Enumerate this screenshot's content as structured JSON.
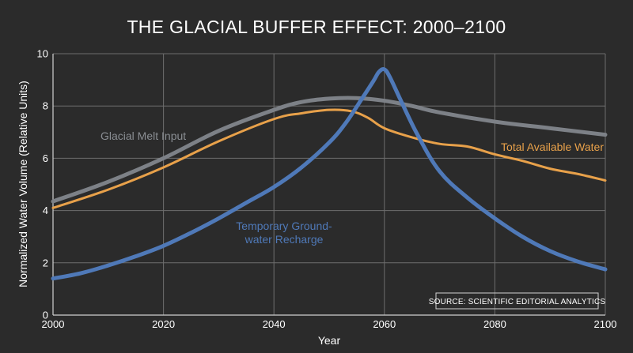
{
  "chart_data": {
    "type": "line",
    "title": "THE GLACIAL BUFFER EFFECT: 2000–2100",
    "xlabel": "Year",
    "ylabel": "Normalized Water Volume (Relative Units)",
    "xlim": [
      2000,
      2100
    ],
    "ylim": [
      0,
      10
    ],
    "x_ticks": [
      2000,
      2020,
      2040,
      2060,
      2080,
      2100
    ],
    "y_ticks": [
      0,
      2,
      4,
      6,
      8,
      10
    ],
    "grid": true,
    "source_note": "SOURCE: SCIENTIFIC EDITORIAL ANALYTICS",
    "series": [
      {
        "name": "Glacial Melt Input",
        "color": "#7d8187",
        "x": [
          2000,
          2010,
          2020,
          2030,
          2040,
          2045,
          2050,
          2055,
          2060,
          2065,
          2070,
          2080,
          2090,
          2100
        ],
        "values": [
          4.35,
          5.1,
          6.0,
          7.05,
          7.85,
          8.15,
          8.28,
          8.3,
          8.2,
          8.0,
          7.75,
          7.4,
          7.15,
          6.9
        ]
      },
      {
        "name": "Total Available Water",
        "color": "#e8a14a",
        "x": [
          2000,
          2010,
          2020,
          2030,
          2040,
          2045,
          2050,
          2054,
          2057,
          2060,
          2065,
          2070,
          2075,
          2080,
          2085,
          2090,
          2095,
          2100
        ],
        "values": [
          4.1,
          4.8,
          5.65,
          6.65,
          7.5,
          7.72,
          7.85,
          7.8,
          7.55,
          7.15,
          6.8,
          6.55,
          6.45,
          6.15,
          5.9,
          5.6,
          5.4,
          5.15
        ]
      },
      {
        "name": "Temporary Ground-water Recharge",
        "label_lines": [
          "Temporary Ground-",
          "water Recharge"
        ],
        "color": "#4f79b8",
        "x": [
          2000,
          2005,
          2010,
          2015,
          2020,
          2025,
          2030,
          2035,
          2040,
          2045,
          2050,
          2053,
          2056,
          2058,
          2059,
          2060,
          2061,
          2063,
          2066,
          2070,
          2075,
          2080,
          2085,
          2090,
          2095,
          2100
        ],
        "values": [
          1.4,
          1.6,
          1.9,
          2.25,
          2.65,
          3.15,
          3.7,
          4.3,
          4.9,
          5.65,
          6.6,
          7.35,
          8.3,
          8.95,
          9.3,
          9.4,
          9.1,
          8.2,
          6.9,
          5.5,
          4.5,
          3.7,
          3.0,
          2.45,
          2.05,
          1.75
        ]
      }
    ]
  }
}
